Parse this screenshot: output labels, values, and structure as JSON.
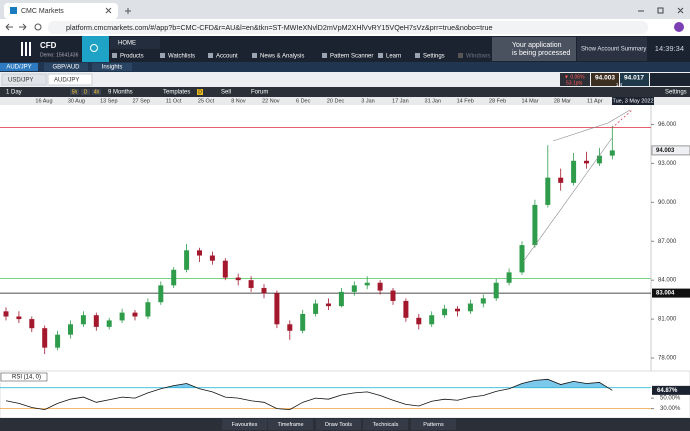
{
  "browser": {
    "tab_title": "CMC Markets",
    "url": "platform.cmcmarkets.com/#/app?b=CMC-CFD&r=AU&l=en&tkn=ST-MWIeXNvlD2mVpM2XHlVvRY15VQeH7sVz&prr=true&nobo=true"
  },
  "app": {
    "product": "CFD",
    "account": "Demo: 15641436",
    "home": "HOME",
    "nav": [
      "Products",
      "Watchlists",
      "Account",
      "News & Analysis",
      "Pattern Scanner",
      "Learn",
      "Settings",
      "Windows"
    ],
    "notice": [
      "Your application",
      "is being processed"
    ],
    "account_summary": "Show Account Summary",
    "clock": "14:39:34"
  },
  "instrument_tabs": [
    "AUD/JPY",
    "GBP/AUD",
    "Insights"
  ],
  "chart_tabs": [
    "USD/JPY",
    "AUD/JPY"
  ],
  "quote": {
    "change_pct": "▼ 0.06%",
    "change_pts": "53.1pts",
    "sell": "94.003",
    "buy": "94.017",
    "spread": "1.4"
  },
  "toolbar": {
    "timeframe": "1 Day",
    "intervals": [
      "5h",
      "D",
      "4h"
    ],
    "range": "9 Months",
    "templates": "Templates",
    "badge": "D",
    "sell": "Sell",
    "forum": "Forum",
    "settings": "Settings"
  },
  "chart": {
    "dates": [
      "16 Aug",
      "30 Aug",
      "13 Sep",
      "27 Sep",
      "11 Oct",
      "25 Oct",
      "8 Nov",
      "22 Nov",
      "6 Dec",
      "20 Dec",
      "3 Jan",
      "17 Jan",
      "31 Jan",
      "14 Feb",
      "28 Feb",
      "14 Mar",
      "28 Mar",
      "11 Apr"
    ],
    "tooltip": "Tue, 3 May 2022",
    "ylim": [
      77.0,
      97.5
    ],
    "yticks": [
      {
        "value": 96,
        "label": "96.000"
      },
      {
        "value": 93,
        "label": "93.000"
      },
      {
        "value": 90,
        "label": "90.000"
      },
      {
        "value": 87,
        "label": "87.000"
      },
      {
        "value": 84,
        "label": "84.000"
      },
      {
        "value": 81,
        "label": "81.000"
      },
      {
        "value": 78,
        "label": "78.000"
      }
    ],
    "levels": [
      {
        "value": 95.77,
        "color": "#e0475a"
      },
      {
        "value": 84.12,
        "color": "#4cc35a"
      },
      {
        "value": 83.004,
        "label": "83.004",
        "color": "#111111"
      }
    ],
    "last": {
      "value": 94.003,
      "label": "94.003"
    },
    "candles": [
      [
        81.6,
        81.9,
        80.9,
        81.2
      ],
      [
        81.2,
        81.6,
        80.7,
        81.0
      ],
      [
        81.0,
        81.2,
        80.0,
        80.3
      ],
      [
        80.3,
        80.5,
        78.3,
        78.8
      ],
      [
        78.8,
        80.1,
        78.6,
        79.8
      ],
      [
        79.8,
        80.9,
        79.5,
        80.6
      ],
      [
        80.6,
        81.6,
        80.4,
        81.3
      ],
      [
        81.3,
        81.5,
        80.1,
        80.4
      ],
      [
        80.4,
        81.1,
        80.2,
        80.9
      ],
      [
        80.9,
        81.8,
        80.7,
        81.5
      ],
      [
        81.5,
        81.7,
        80.9,
        81.2
      ],
      [
        81.2,
        82.6,
        81.0,
        82.3
      ],
      [
        82.3,
        83.9,
        82.1,
        83.6
      ],
      [
        83.6,
        85.0,
        83.4,
        84.8
      ],
      [
        84.8,
        86.8,
        84.6,
        86.3
      ],
      [
        86.3,
        86.5,
        85.4,
        85.9
      ],
      [
        85.9,
        86.2,
        85.2,
        85.5
      ],
      [
        85.5,
        85.7,
        84.0,
        84.2
      ],
      [
        84.2,
        84.5,
        83.6,
        84.0
      ],
      [
        84.0,
        84.3,
        83.1,
        83.4
      ],
      [
        83.4,
        83.7,
        82.6,
        83.0
      ],
      [
        83.0,
        83.2,
        80.3,
        80.6
      ],
      [
        80.6,
        80.9,
        79.4,
        80.1
      ],
      [
        80.1,
        81.7,
        79.9,
        81.4
      ],
      [
        81.4,
        82.5,
        81.2,
        82.2
      ],
      [
        82.2,
        82.6,
        81.7,
        82.0
      ],
      [
        82.0,
        83.4,
        81.9,
        83.1
      ],
      [
        83.1,
        83.9,
        82.8,
        83.6
      ],
      [
        83.6,
        84.3,
        83.3,
        83.8
      ],
      [
        83.8,
        84.0,
        82.9,
        83.2
      ],
      [
        83.2,
        83.4,
        82.1,
        82.4
      ],
      [
        82.4,
        82.6,
        80.8,
        81.1
      ],
      [
        81.1,
        81.4,
        80.2,
        80.6
      ],
      [
        80.6,
        81.6,
        80.4,
        81.3
      ],
      [
        81.3,
        82.1,
        81.1,
        81.8
      ],
      [
        81.8,
        82.0,
        81.2,
        81.6
      ],
      [
        81.6,
        82.5,
        81.4,
        82.2
      ],
      [
        82.2,
        82.9,
        81.9,
        82.6
      ],
      [
        82.6,
        84.1,
        82.4,
        83.8
      ],
      [
        83.8,
        84.9,
        83.6,
        84.6
      ],
      [
        84.6,
        87.0,
        84.4,
        86.7
      ],
      [
        86.7,
        90.2,
        86.5,
        89.8
      ],
      [
        89.8,
        94.4,
        89.6,
        91.9
      ],
      [
        91.9,
        92.6,
        90.9,
        91.5
      ],
      [
        91.5,
        93.8,
        91.3,
        93.2
      ],
      [
        93.2,
        93.9,
        92.6,
        93.0
      ],
      [
        93.0,
        94.2,
        92.8,
        93.6
      ],
      [
        93.6,
        95.9,
        93.3,
        94.0
      ]
    ],
    "up_color": "#2e9c4a",
    "down_color": "#a3182c",
    "rsi": {
      "title": "RSI (14, 0)",
      "ylim": [
        12,
        100
      ],
      "values": [
        45,
        40,
        32,
        28,
        40,
        48,
        52,
        42,
        47,
        52,
        50,
        60,
        68,
        74,
        78,
        68,
        62,
        52,
        50,
        45,
        42,
        30,
        28,
        42,
        50,
        48,
        56,
        60,
        62,
        55,
        46,
        38,
        35,
        44,
        48,
        46,
        52,
        55,
        63,
        68,
        78,
        84,
        86,
        76,
        82,
        78,
        80,
        65
      ],
      "last": {
        "value": 64.87,
        "label": "64.87%"
      },
      "yticks": [
        {
          "value": 50,
          "label": "50.00%"
        },
        {
          "value": 30,
          "label": "30.00%"
        }
      ],
      "upper": 70,
      "lower": 30,
      "fill": "#7cc8ea"
    }
  },
  "bottom_bar": [
    "Favourites",
    "Timeframe",
    "Draw Tools",
    "Technicals",
    "Patterns"
  ]
}
